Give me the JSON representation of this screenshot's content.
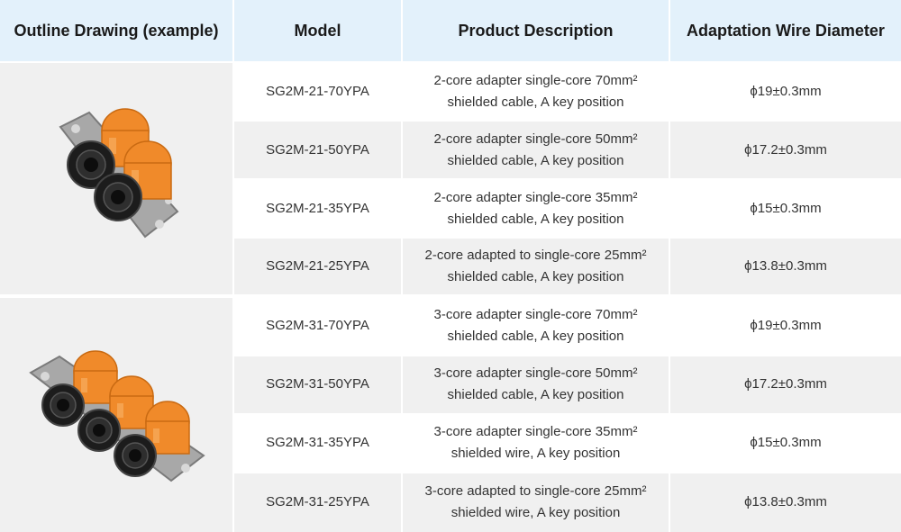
{
  "headers": {
    "outline": "Outline Drawing (example)",
    "model": "Model",
    "description": "Product Description",
    "diameter": "Adaptation Wire Diameter"
  },
  "images": {
    "group1_icon": "two-port-connector-icon",
    "group2_icon": "three-port-connector-icon"
  },
  "colors": {
    "header_bg": "#e3f1fb",
    "row_alt_bg": "#f0f0f0",
    "connector_orange": "#f08a2a",
    "flange_gray": "#9a9a9a"
  },
  "rows": [
    {
      "model": "SG2M-21-70YPA",
      "desc1": "2-core adapter single-core 70mm²",
      "desc2": "shielded cable, A key position",
      "diameter": "ϕ19±0.3mm"
    },
    {
      "model": "SG2M-21-50YPA",
      "desc1": "2-core adapter single-core 50mm²",
      "desc2": "shielded cable, A key position",
      "diameter": "ϕ17.2±0.3mm"
    },
    {
      "model": "SG2M-21-35YPA",
      "desc1": "2-core adapter single-core 35mm²",
      "desc2": "shielded cable, A key position",
      "diameter": "ϕ15±0.3mm"
    },
    {
      "model": "SG2M-21-25YPA",
      "desc1": "2-core adapted to single-core 25mm²",
      "desc2": "shielded cable, A key position",
      "diameter": "ϕ13.8±0.3mm"
    },
    {
      "model": "SG2M-31-70YPA",
      "desc1": "3-core adapter single-core 70mm²",
      "desc2": "shielded cable, A key position",
      "diameter": "ϕ19±0.3mm"
    },
    {
      "model": "SG2M-31-50YPA",
      "desc1": "3-core adapter single-core 50mm²",
      "desc2": "shielded cable, A key position",
      "diameter": "ϕ17.2±0.3mm"
    },
    {
      "model": "SG2M-31-35YPA",
      "desc1": "3-core adapter single-core 35mm²",
      "desc2": "shielded wire, A key position",
      "diameter": "ϕ15±0.3mm"
    },
    {
      "model": "SG2M-31-25YPA",
      "desc1": "3-core adapted to single-core 25mm²",
      "desc2": "shielded wire, A key position",
      "diameter": "ϕ13.8±0.3mm"
    }
  ]
}
